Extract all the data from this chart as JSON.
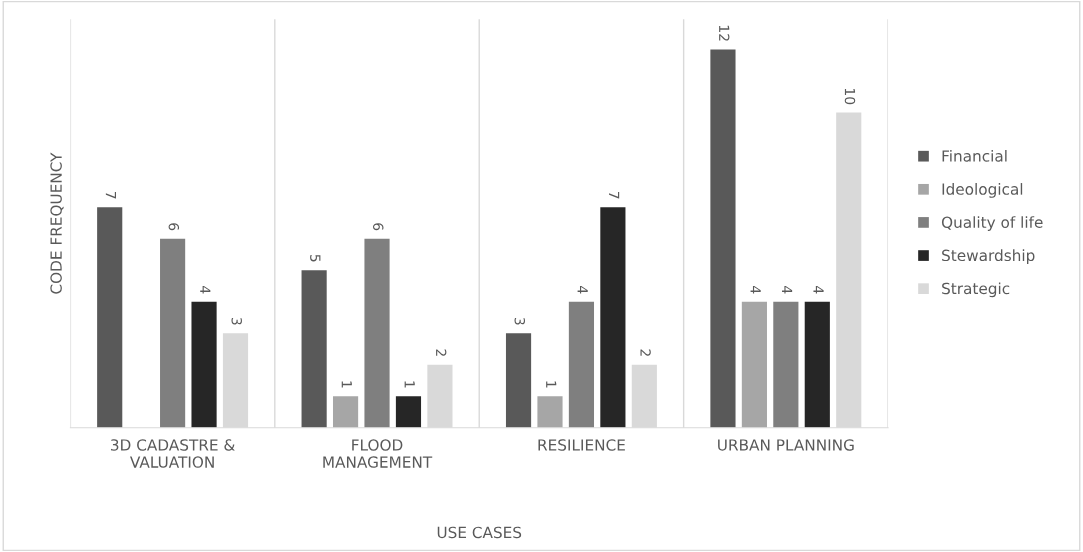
{
  "chart_data": {
    "type": "bar",
    "xlabel": "USE CASES",
    "ylabel": "CODE FREQUENCY",
    "categories": [
      "3D CADASTRE &\nVALUATION",
      "FLOOD\nMANAGEMENT",
      "RESILIENCE",
      "URBAN PLANNING"
    ],
    "series": [
      {
        "name": "Financial",
        "color": "#595959",
        "values": [
          7,
          5,
          3,
          12
        ]
      },
      {
        "name": "Ideological",
        "color": "#a6a6a6",
        "values": [
          null,
          1,
          1,
          4
        ]
      },
      {
        "name": "Quality of life",
        "color": "#7f7f7f",
        "values": [
          6,
          6,
          4,
          4
        ]
      },
      {
        "name": "Stewardship",
        "color": "#262626",
        "values": [
          4,
          1,
          7,
          4
        ]
      },
      {
        "name": "Strategic",
        "color": "#d9d9d9",
        "values": [
          3,
          2,
          2,
          10
        ]
      }
    ],
    "data_labels": true,
    "grid": "x",
    "legend": "right"
  }
}
